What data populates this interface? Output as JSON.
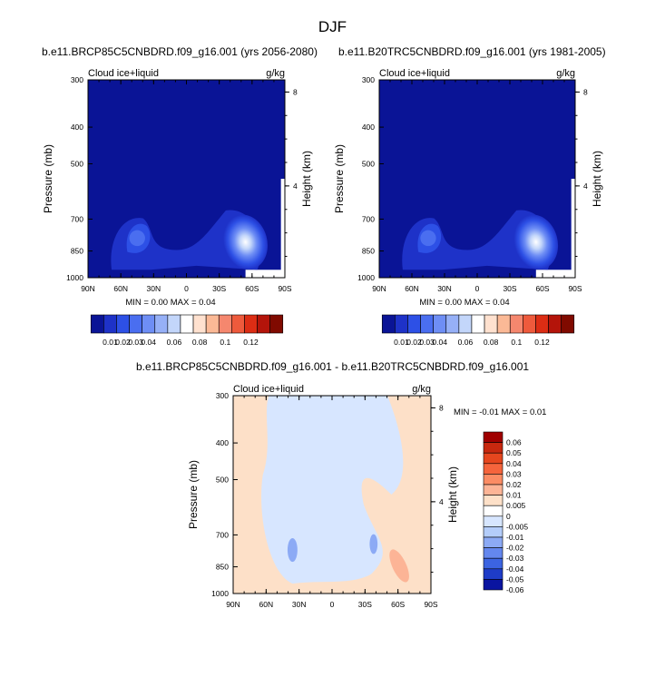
{
  "chart_data": {
    "title": "DJF",
    "panels": [
      {
        "type": "heatmap",
        "subtitle": "b.e11.BRCP85C5CNBDRD.f09_g16.001 (yrs 2056-2080)",
        "variable": "Cloud ice+liquid",
        "units": "g/kg",
        "ylabel": "Pressure (mb)",
        "ylabel_right": "Height (km)",
        "x_ticks": [
          "90N",
          "60N",
          "30N",
          "0",
          "30S",
          "60S",
          "90S"
        ],
        "y_ticks": [
          300,
          400,
          500,
          700,
          850,
          1000
        ],
        "height_ticks": [
          8,
          4
        ],
        "stats": {
          "min_label": "MIN =",
          "min": "0.00",
          "max_label": "MAX =",
          "max": "0.04"
        },
        "colorbar_labels": [
          "0.01",
          "0.02",
          "0.03",
          "0.04",
          "0.06",
          "0.08",
          "0.1",
          "0.12"
        ]
      },
      {
        "type": "heatmap",
        "subtitle": "b.e11.B20TRC5CNBDRD.f09_g16.001 (yrs 1981-2005)",
        "variable": "Cloud ice+liquid",
        "units": "g/kg",
        "ylabel": "Pressure (mb)",
        "ylabel_right": "Height (km)",
        "x_ticks": [
          "90N",
          "60N",
          "30N",
          "0",
          "30S",
          "60S",
          "90S"
        ],
        "y_ticks": [
          300,
          400,
          500,
          700,
          850,
          1000
        ],
        "height_ticks": [
          8,
          4
        ],
        "stats": {
          "min_label": "MIN =",
          "min": "0.00",
          "max_label": "MAX =",
          "max": "0.04"
        },
        "colorbar_labels": [
          "0.01",
          "0.02",
          "0.03",
          "0.04",
          "0.06",
          "0.08",
          "0.1",
          "0.12"
        ]
      },
      {
        "type": "heatmap",
        "subtitle": "b.e11.BRCP85C5CNBDRD.f09_g16.001 - b.e11.B20TRC5CNBDRD.f09_g16.001",
        "variable": "Cloud ice+liquid",
        "units": "g/kg",
        "ylabel": "Pressure (mb)",
        "ylabel_right": "Height (km)",
        "x_ticks": [
          "90N",
          "60N",
          "30N",
          "0",
          "30S",
          "60S",
          "90S"
        ],
        "y_ticks": [
          300,
          400,
          500,
          700,
          850,
          1000
        ],
        "height_ticks": [
          8,
          4
        ],
        "stats": {
          "min_label": "MIN =",
          "min": "-0.01",
          "max_label": "MAX =",
          "max": "0.01"
        },
        "colorbar_labels": [
          "0.06",
          "0.05",
          "0.04",
          "0.03",
          "0.02",
          "0.01",
          "0.005",
          "0",
          "-0.005",
          "-0.01",
          "-0.02",
          "-0.03",
          "-0.04",
          "-0.05",
          "-0.06"
        ]
      }
    ],
    "colors": {
      "field_scale": [
        "#0a1496",
        "#1e32c8",
        "#2d50e6",
        "#4a6ef0",
        "#6e8ef5",
        "#96b0f7",
        "#c3d6fa",
        "#ffffff",
        "#ffe1cf",
        "#fbb996",
        "#f5876e",
        "#ee5a3c",
        "#dc2d14",
        "#b4140a",
        "#800a00"
      ],
      "diff_scale": [
        "#a00000",
        "#c8280f",
        "#e6461e",
        "#f5643c",
        "#fb8c64",
        "#fcb496",
        "#fde0c8",
        "#ffffff",
        "#d7e6ff",
        "#b4cdfa",
        "#8caaf5",
        "#6487ee",
        "#3c64e1",
        "#1e3cc8",
        "#0a14a0"
      ]
    }
  }
}
